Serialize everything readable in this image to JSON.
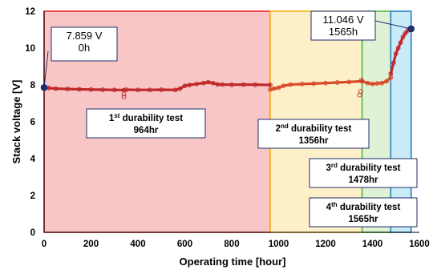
{
  "chart_data": {
    "type": "scatter",
    "title": "",
    "xlabel": "Operating time [hour]",
    "ylabel": "Stack voltage [V]",
    "xlim": [
      0,
      1600
    ],
    "ylim": [
      0,
      12
    ],
    "x_ticks": [
      "0",
      "200",
      "400",
      "600",
      "800",
      "1000",
      "1200",
      "1400",
      "1600"
    ],
    "y_ticks": [
      "0",
      "2",
      "4",
      "6",
      "8",
      "10",
      "12"
    ],
    "grid": false,
    "regions": [
      {
        "start": 0,
        "end": 964,
        "fill": "#f8c6c6",
        "border": "#e8262b"
      },
      {
        "start": 964,
        "end": 1356,
        "fill": "#fdefc8",
        "border": "#f5b31b"
      },
      {
        "start": 1356,
        "end": 1478,
        "fill": "#dff2d6",
        "border": "#5cb44a"
      },
      {
        "start": 1478,
        "end": 1565,
        "fill": "#c9ebf8",
        "border": "#2d7fc0"
      }
    ],
    "series": [
      {
        "x": [
          0,
          20,
          50,
          100,
          150,
          200,
          250,
          300,
          340,
          350,
          400,
          450,
          500,
          560,
          580,
          600,
          620,
          650,
          680,
          700,
          720,
          740,
          760,
          800,
          850,
          900,
          964
        ],
        "y": [
          7.86,
          7.83,
          7.8,
          7.78,
          7.76,
          7.75,
          7.74,
          7.73,
          7.72,
          7.74,
          7.73,
          7.73,
          7.74,
          7.73,
          7.8,
          7.95,
          8.0,
          8.05,
          8.1,
          8.15,
          8.1,
          8.03,
          8.02,
          8.01,
          8.02,
          8.01,
          8.0
        ],
        "color": "#c0282a"
      },
      {
        "x": [
          964,
          980,
          1000,
          1020,
          1050,
          1100,
          1150,
          1200,
          1250,
          1300,
          1356
        ],
        "y": [
          7.75,
          7.8,
          7.85,
          7.95,
          8.02,
          8.05,
          8.07,
          8.1,
          8.13,
          8.16,
          8.2
        ],
        "color": "#d84a2a"
      },
      {
        "x": [
          1356,
          1380,
          1400,
          1420,
          1440,
          1460,
          1478
        ],
        "y": [
          8.2,
          8.1,
          8.05,
          8.08,
          8.1,
          8.2,
          8.4
        ],
        "color": "#d84a2a"
      },
      {
        "x": [
          1478,
          1490,
          1500,
          1510,
          1520,
          1530,
          1540,
          1550,
          1560,
          1565
        ],
        "y": [
          8.6,
          9.2,
          9.7,
          10.0,
          10.3,
          10.6,
          10.8,
          10.95,
          11.0,
          11.046
        ],
        "color": "#c0282a"
      }
    ],
    "outliers": [
      {
        "x": 340,
        "y": 7.35
      },
      {
        "x": 340,
        "y": 7.5
      },
      {
        "x": 1345,
        "y": 7.45
      },
      {
        "x": 1350,
        "y": 7.65
      },
      {
        "x": 1352,
        "y": 8.25
      }
    ],
    "endpoints": [
      {
        "x": 0,
        "y": 7.859
      },
      {
        "x": 1565,
        "y": 11.046
      }
    ],
    "annotations": [
      {
        "line1": "7.859 V",
        "line2": "0h"
      },
      {
        "line1": "11.046 V",
        "line2": "1565h"
      }
    ],
    "tests": [
      {
        "num": "1",
        "sup": "st",
        "name": " durability test",
        "hours": "964hr"
      },
      {
        "num": "2",
        "sup": "nd",
        "name": " durability test",
        "hours": "1356hr"
      },
      {
        "num": "3",
        "sup": "rd",
        "name": " durability test",
        "hours": "1478hr"
      },
      {
        "num": "4",
        "sup": "th",
        "name": " durability test",
        "hours": "1565hr"
      }
    ]
  }
}
